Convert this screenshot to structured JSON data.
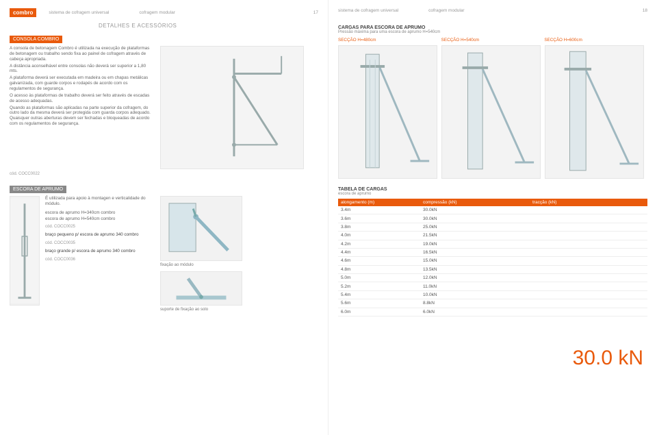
{
  "brand": "combro",
  "header": {
    "sys": "sistema de cofragem universal",
    "mod": "cofragem modular",
    "pn_left": "17",
    "pn_right": "18"
  },
  "subtitle": "DETALHES E ACESSÓRIOS",
  "consola": {
    "title": "CONSOLA COMBRO",
    "paragraphs": [
      "A consola de betonagem Combro é utilizada na execução de plataformas de betonagem ou trabalho sendo fixa ao painel de cofragem através de cabeça apropriada.",
      "A distância aconselhável entre consolas não deverá ser superior a 1,80 mts.",
      "A plataforma deverá ser executada em madeira ou em chapas metálicas galvanizada, com guarde corpos e rodapés de acordo com os regulamentos de segurança.",
      "O acesso às plataformas de trabalho deverá ser feito através de escadas de acesso adequadas.",
      "Quando as plataformas são aplicadas na parte superior da cofragem, do outro lado da mesma deverá ser protegida com guarda corpos adequado. Quaisquer outras aberturas devem ser fechadas e bloqueadas de acordo com os regulamentos de segurança."
    ],
    "code": "cód. COCC0022"
  },
  "escora": {
    "title": "ESCORA DE APRUMO",
    "lead": "É utilizada para apoio à montagen e verticalidade do módulo.",
    "items": [
      {
        "line": "escora de aprumo H=340cm combro"
      },
      {
        "line": "escora de aprumo H=540cm combro",
        "code": "cód. COCC0025"
      },
      {
        "line": "braço pequeno p/ escora de aprumo 340 combro",
        "code": "cód. COCC0035",
        "bold": true
      },
      {
        "line": "braço grande p/ escora de aprumo 340 combro",
        "code": "cód. COCC0036",
        "bold": true
      }
    ],
    "fix_module": "fixação ao módulo",
    "fix_solo": "suporte de fixação ao solo"
  },
  "cargas": {
    "title": "CARGAS PARA ESCORA DE APRUMO",
    "subtitle": "Pressão máxima para uma escora de aprumo H=540cm",
    "sections": [
      "SECÇÃO H=480cm",
      "SECÇÃO H=540cm",
      "SECÇÃO H=600cm"
    ]
  },
  "tabela": {
    "title": "TABELA DE CARGAS",
    "subtitle": "escora de aprumo",
    "headers": [
      "alongamento (m)",
      "compressão (kN)",
      "tracção (kN)"
    ],
    "rows": [
      [
        "3.4m",
        "30.0kN"
      ],
      [
        "3.6m",
        "30.0kN"
      ],
      [
        "3.8m",
        "25.0kN"
      ],
      [
        "4.0m",
        "21.5kN"
      ],
      [
        "4.2m",
        "19.0kN"
      ],
      [
        "4.4m",
        "16.5kN"
      ],
      [
        "4.6m",
        "15.0kN"
      ],
      [
        "4.8m",
        "13.5kN"
      ],
      [
        "5.0m",
        "12.0kN"
      ],
      [
        "5.2m",
        "11.0kN"
      ],
      [
        "5.4m",
        "10.0kN"
      ],
      [
        "5.6m",
        "8.8kN"
      ],
      [
        "6.0m",
        "6.0kN"
      ]
    ],
    "big": "30.0 kN"
  },
  "colors": {
    "accent": "#e95a0c"
  }
}
